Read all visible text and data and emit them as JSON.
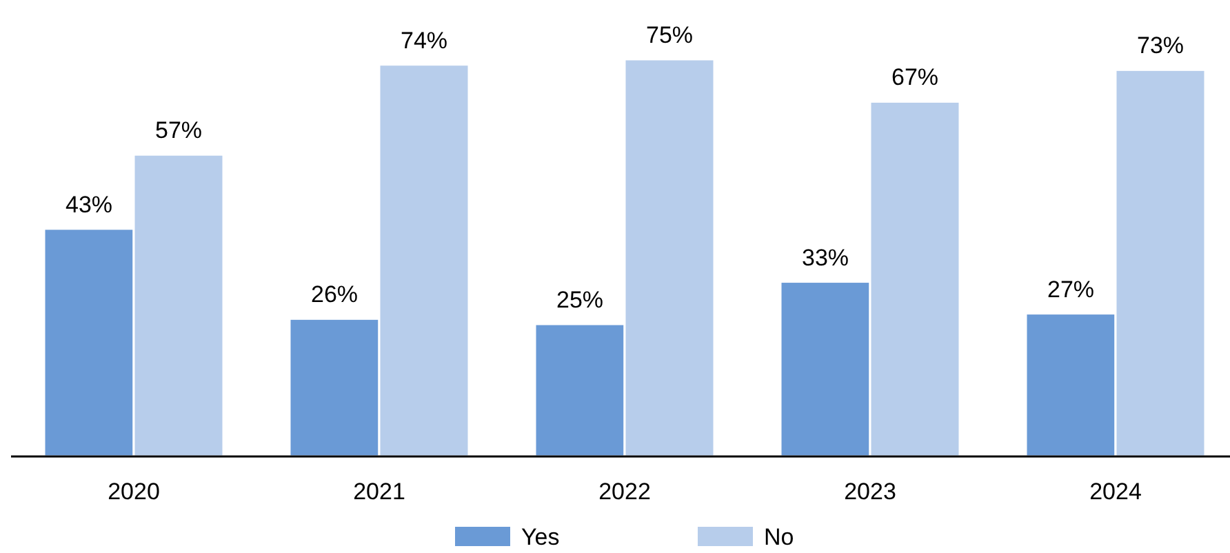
{
  "chart_data": {
    "type": "bar",
    "categories": [
      "2020",
      "2021",
      "2022",
      "2023",
      "2024"
    ],
    "series": [
      {
        "name": "Yes",
        "color": "#6a9ad6",
        "values": [
          43,
          26,
          25,
          33,
          27
        ],
        "value_labels": [
          "43%",
          "26%",
          "25%",
          "33%",
          "27%"
        ]
      },
      {
        "name": "No",
        "color": "#b7cdeb",
        "values": [
          57,
          74,
          75,
          67,
          73
        ],
        "value_labels": [
          "57%",
          "74%",
          "75%",
          "67%",
          "73%"
        ]
      }
    ],
    "legend": "bottom",
    "tick_labels": "x"
  }
}
